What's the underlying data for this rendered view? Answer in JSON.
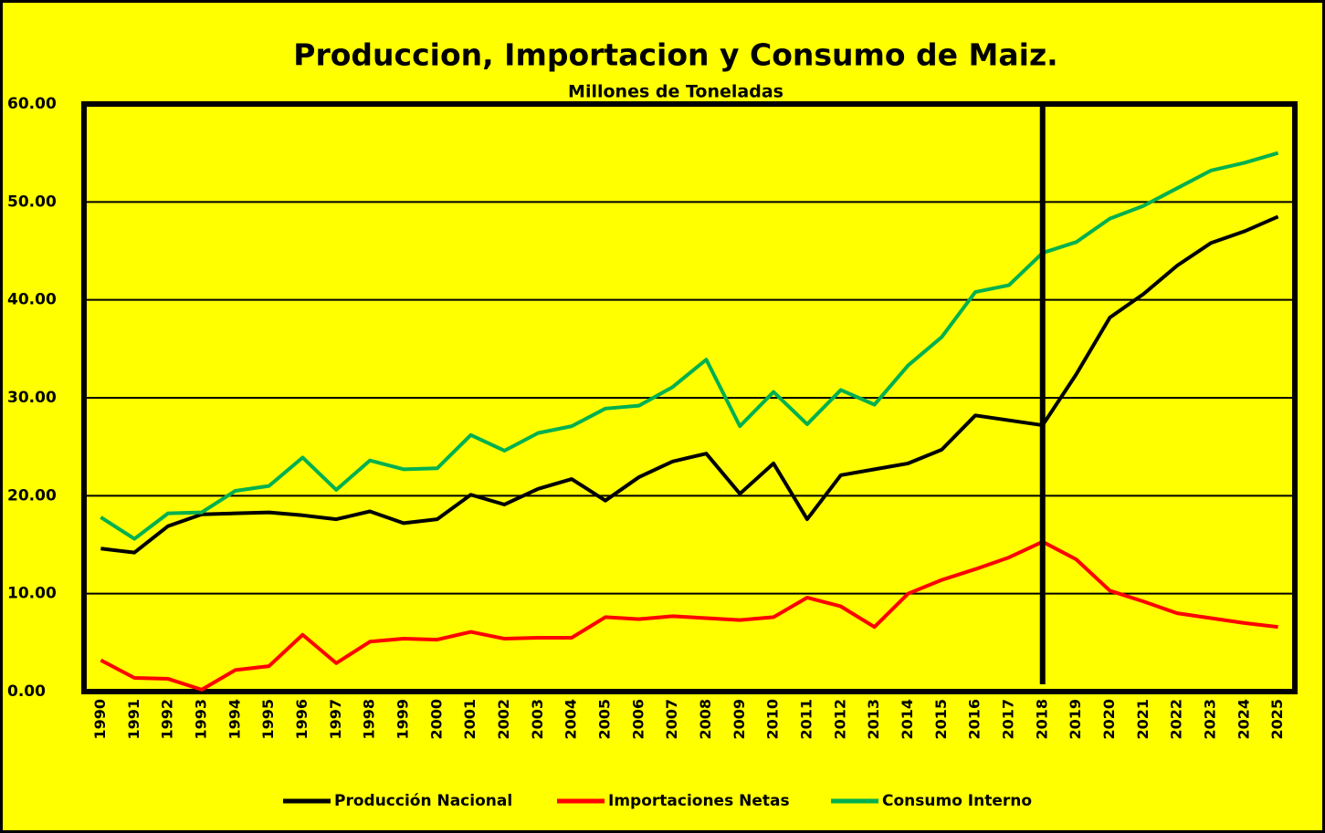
{
  "chart_data": {
    "type": "line",
    "title": "Produccion, Importacion y Consumo de Maiz.",
    "subtitle": "Millones de Toneladas",
    "categories": [
      "1990",
      "1991",
      "1992",
      "1993",
      "1994",
      "1995",
      "1996",
      "1997",
      "1998",
      "1999",
      "2000",
      "2001",
      "2002",
      "2003",
      "2004",
      "2005",
      "2006",
      "2007",
      "2008",
      "2009",
      "2010",
      "2011",
      "2012",
      "2013",
      "2014",
      "2015",
      "2016",
      "2017",
      "2018",
      "2019",
      "2020",
      "2021",
      "2022",
      "2023",
      "2024",
      "2025"
    ],
    "series": [
      {
        "name": "Producción Nacional",
        "color": "#000000",
        "values": [
          14.6,
          14.2,
          16.9,
          18.1,
          18.2,
          18.3,
          18.0,
          17.6,
          18.4,
          17.2,
          17.6,
          20.1,
          19.1,
          20.7,
          21.7,
          19.5,
          21.9,
          23.5,
          24.3,
          20.2,
          23.3,
          17.6,
          22.1,
          22.7,
          23.3,
          24.7,
          28.2,
          27.7,
          27.2,
          32.4,
          38.2,
          40.6,
          43.5,
          45.8,
          47.0,
          48.5
        ]
      },
      {
        "name": "Importaciones Netas",
        "color": "#ff0000",
        "values": [
          3.2,
          1.4,
          1.3,
          0.2,
          2.2,
          2.6,
          5.8,
          2.9,
          5.1,
          5.4,
          5.3,
          6.1,
          5.4,
          5.5,
          5.5,
          7.6,
          7.4,
          7.7,
          7.5,
          7.3,
          7.6,
          9.6,
          8.7,
          6.6,
          10.0,
          11.4,
          12.5,
          13.7,
          15.3,
          13.5,
          10.3,
          9.2,
          8.0,
          7.5,
          7.0,
          6.6
        ]
      },
      {
        "name": "Consumo Interno",
        "color": "#00b050",
        "values": [
          17.8,
          15.6,
          18.2,
          18.3,
          20.5,
          21.0,
          23.9,
          20.6,
          23.6,
          22.7,
          22.8,
          26.2,
          24.6,
          26.4,
          27.1,
          28.9,
          29.2,
          31.1,
          33.9,
          27.1,
          30.6,
          27.3,
          30.8,
          29.3,
          33.3,
          36.2,
          40.8,
          41.5,
          44.8,
          45.9,
          48.3,
          49.6,
          51.4,
          53.2,
          54.0,
          55.0
        ]
      }
    ],
    "ylim": [
      0,
      60
    ],
    "yticks": [
      {
        "value": 0,
        "label": "0.00"
      },
      {
        "value": 10,
        "label": "10.00"
      },
      {
        "value": 20,
        "label": "20.00"
      },
      {
        "value": 30,
        "label": "30.00"
      },
      {
        "value": 40,
        "label": "40.00"
      },
      {
        "value": 50,
        "label": "50.00"
      },
      {
        "value": 60,
        "label": "60.00"
      }
    ],
    "grid": true,
    "vline": "2018",
    "legend": "bottom",
    "background": "#ffff00"
  }
}
